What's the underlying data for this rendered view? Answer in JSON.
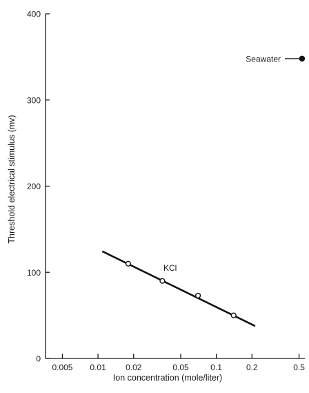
{
  "chart_data": {
    "type": "line",
    "title": "",
    "xlabel": "Ion concentration (mole/liter)",
    "ylabel": "Threshold electrical stimulus (mv)",
    "x_scale": "log",
    "xlim": [
      0.0036,
      0.56
    ],
    "ylim": [
      0,
      400
    ],
    "x_ticks": [
      0.005,
      0.01,
      0.02,
      0.05,
      0.1,
      0.2,
      0.5
    ],
    "x_tick_labels": [
      "0.005",
      "0.01",
      "0.02",
      "0.05",
      "0.1",
      "0.2",
      "0.5"
    ],
    "y_ticks": [
      0,
      100,
      200,
      300,
      400
    ],
    "y_tick_labels": [
      "0",
      "100",
      "200",
      "300",
      "400"
    ],
    "grid": false,
    "series": [
      {
        "name": "KCl",
        "label": "KCl",
        "marker": "open-circle",
        "points": [
          {
            "x": 0.018,
            "y": 110
          },
          {
            "x": 0.035,
            "y": 90
          },
          {
            "x": 0.07,
            "y": 73
          },
          {
            "x": 0.14,
            "y": 50
          }
        ],
        "fit_line": {
          "x": [
            0.011,
            0.21
          ],
          "y": [
            124,
            38
          ]
        }
      },
      {
        "name": "Seawater",
        "label": "Seawater",
        "marker": "filled-circle",
        "points": [
          {
            "x": 0.53,
            "y": 348
          }
        ]
      }
    ]
  }
}
